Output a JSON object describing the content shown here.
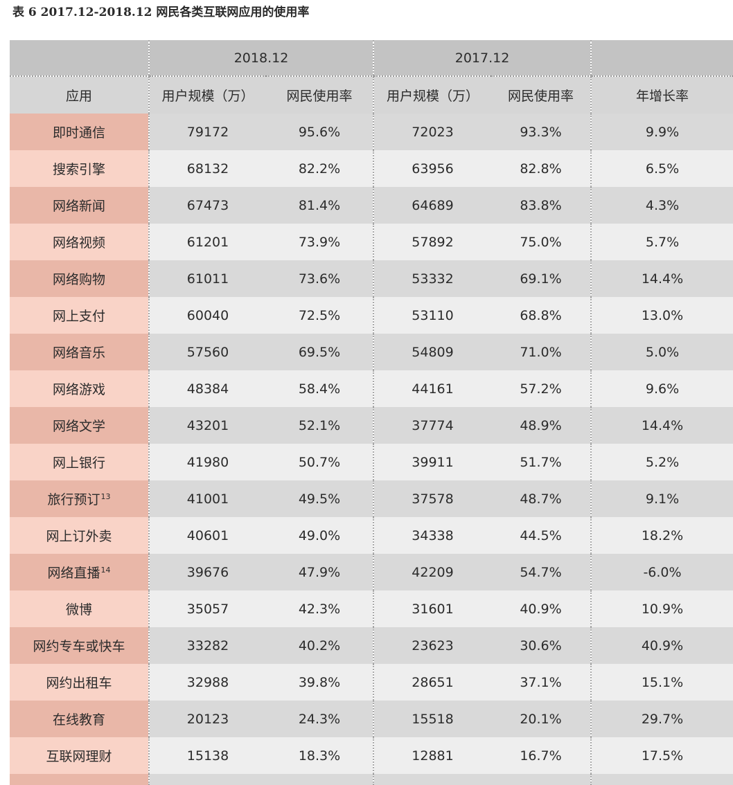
{
  "caption": "表 6   2017.12-2018.12 网民各类互联网应用的使用率",
  "table": {
    "periods": [
      "2018.12",
      "2017.12"
    ],
    "columns": [
      "应用",
      "用户规模（万）",
      "网民使用率",
      "用户规模（万）",
      "网民使用率",
      "年增长率"
    ],
    "rows": [
      {
        "app": "即时通信",
        "note": "",
        "users_2018": "79172",
        "rate_2018": "95.6%",
        "users_2017": "72023",
        "rate_2017": "93.3%",
        "growth": "9.9%"
      },
      {
        "app": "搜索引擎",
        "note": "",
        "users_2018": "68132",
        "rate_2018": "82.2%",
        "users_2017": "63956",
        "rate_2017": "82.8%",
        "growth": "6.5%"
      },
      {
        "app": "网络新闻",
        "note": "",
        "users_2018": "67473",
        "rate_2018": "81.4%",
        "users_2017": "64689",
        "rate_2017": "83.8%",
        "growth": "4.3%"
      },
      {
        "app": "网络视频",
        "note": "",
        "users_2018": "61201",
        "rate_2018": "73.9%",
        "users_2017": "57892",
        "rate_2017": "75.0%",
        "growth": "5.7%"
      },
      {
        "app": "网络购物",
        "note": "",
        "users_2018": "61011",
        "rate_2018": "73.6%",
        "users_2017": "53332",
        "rate_2017": "69.1%",
        "growth": "14.4%"
      },
      {
        "app": "网上支付",
        "note": "",
        "users_2018": "60040",
        "rate_2018": "72.5%",
        "users_2017": "53110",
        "rate_2017": "68.8%",
        "growth": "13.0%"
      },
      {
        "app": "网络音乐",
        "note": "",
        "users_2018": "57560",
        "rate_2018": "69.5%",
        "users_2017": "54809",
        "rate_2017": "71.0%",
        "growth": "5.0%"
      },
      {
        "app": "网络游戏",
        "note": "",
        "users_2018": "48384",
        "rate_2018": "58.4%",
        "users_2017": "44161",
        "rate_2017": "57.2%",
        "growth": "9.6%"
      },
      {
        "app": "网络文学",
        "note": "",
        "users_2018": "43201",
        "rate_2018": "52.1%",
        "users_2017": "37774",
        "rate_2017": "48.9%",
        "growth": "14.4%"
      },
      {
        "app": "网上银行",
        "note": "",
        "users_2018": "41980",
        "rate_2018": "50.7%",
        "users_2017": "39911",
        "rate_2017": "51.7%",
        "growth": "5.2%"
      },
      {
        "app": "旅行预订",
        "note": "13",
        "users_2018": "41001",
        "rate_2018": "49.5%",
        "users_2017": "37578",
        "rate_2017": "48.7%",
        "growth": "9.1%"
      },
      {
        "app": "网上订外卖",
        "note": "",
        "users_2018": "40601",
        "rate_2018": "49.0%",
        "users_2017": "34338",
        "rate_2017": "44.5%",
        "growth": "18.2%"
      },
      {
        "app": "网络直播",
        "note": "14",
        "users_2018": "39676",
        "rate_2018": "47.9%",
        "users_2017": "42209",
        "rate_2017": "54.7%",
        "growth": "-6.0%"
      },
      {
        "app": "微博",
        "note": "",
        "users_2018": "35057",
        "rate_2018": "42.3%",
        "users_2017": "31601",
        "rate_2017": "40.9%",
        "growth": "10.9%"
      },
      {
        "app": "网约专车或快车",
        "note": "",
        "users_2018": "33282",
        "rate_2018": "40.2%",
        "users_2017": "23623",
        "rate_2017": "30.6%",
        "growth": "40.9%"
      },
      {
        "app": "网约出租车",
        "note": "",
        "users_2018": "32988",
        "rate_2018": "39.8%",
        "users_2017": "28651",
        "rate_2017": "37.1%",
        "growth": "15.1%"
      },
      {
        "app": "在线教育",
        "note": "",
        "users_2018": "20123",
        "rate_2018": "24.3%",
        "users_2017": "15518",
        "rate_2017": "20.1%",
        "growth": "29.7%"
      },
      {
        "app": "互联网理财",
        "note": "",
        "users_2018": "15138",
        "rate_2018": "18.3%",
        "users_2017": "12881",
        "rate_2017": "16.7%",
        "growth": "17.5%"
      }
    ]
  }
}
